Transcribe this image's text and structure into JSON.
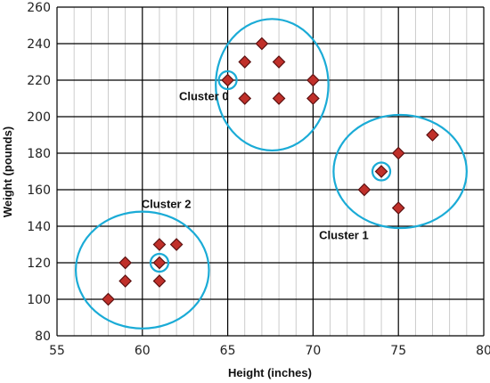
{
  "chart_data": {
    "type": "scatter",
    "title": "",
    "xlabel": "Height (inches)",
    "ylabel": "Weight (pounds)",
    "xlim": [
      55,
      80
    ],
    "ylim": [
      80,
      260
    ],
    "xticks": [
      55,
      60,
      65,
      70,
      75,
      80
    ],
    "yticks": [
      80,
      100,
      120,
      140,
      160,
      180,
      200,
      220,
      240,
      260
    ],
    "x_minor_step": 1,
    "grid": true,
    "colors": {
      "marker_fill": "#c0302a",
      "marker_stroke": "#5a1010",
      "cluster_ring": "#1aabd6",
      "major_grid": "#000000",
      "minor_grid": "#bfbfbf"
    },
    "points": [
      {
        "x": 67,
        "y": 240
      },
      {
        "x": 66,
        "y": 230
      },
      {
        "x": 68,
        "y": 230
      },
      {
        "x": 65,
        "y": 220
      },
      {
        "x": 70,
        "y": 220
      },
      {
        "x": 66,
        "y": 210
      },
      {
        "x": 68,
        "y": 210
      },
      {
        "x": 70,
        "y": 210
      },
      {
        "x": 77,
        "y": 190
      },
      {
        "x": 75,
        "y": 180
      },
      {
        "x": 74,
        "y": 170
      },
      {
        "x": 73,
        "y": 160
      },
      {
        "x": 75,
        "y": 150
      },
      {
        "x": 61,
        "y": 130
      },
      {
        "x": 62,
        "y": 130
      },
      {
        "x": 59,
        "y": 120
      },
      {
        "x": 61,
        "y": 120
      },
      {
        "x": 59,
        "y": 110
      },
      {
        "x": 61,
        "y": 110
      },
      {
        "x": 58,
        "y": 100
      }
    ],
    "clusters": [
      {
        "label": "Cluster 0",
        "center": [
          65,
          220
        ],
        "ellipse_center": [
          67.6,
          217.5
        ],
        "rx_units": 3.3,
        "ry_units": 36,
        "label_anchor": [
          63.6,
          209
        ]
      },
      {
        "label": "Cluster 1",
        "center": [
          74,
          170
        ],
        "ellipse_center": [
          75.1,
          170
        ],
        "rx_units": 3.9,
        "ry_units": 31,
        "label_anchor": [
          71.8,
          133
        ]
      },
      {
        "label": "Cluster 2",
        "center": [
          61,
          120
        ],
        "ellipse_center": [
          60,
          116
        ],
        "rx_units": 3.9,
        "ry_units": 32,
        "label_anchor": [
          61.4,
          150
        ]
      }
    ]
  }
}
